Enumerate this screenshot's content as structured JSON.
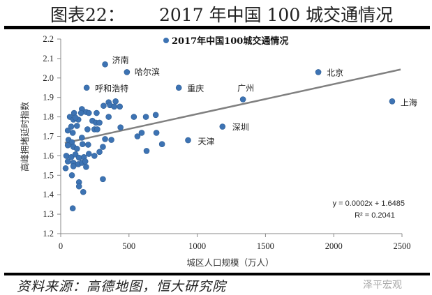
{
  "figure": {
    "number_label": "图表22：",
    "title": "2017 年中国 100 城交通情况",
    "source": "资料来源：高德地图，恒大研究院",
    "watermark": "泽平宏观"
  },
  "chart_data": {
    "type": "scatter",
    "legend": "2017年中国100城交通情况",
    "legend_position": "top",
    "xlabel": "城区人口规模（万人）",
    "ylabel": "高峰拥堵延时指数",
    "xlim": [
      0,
      2500
    ],
    "ylim": [
      1.2,
      2.2
    ],
    "xticks": [
      "0",
      "500",
      "1000",
      "1500",
      "2000",
      "2500"
    ],
    "yticks": [
      "1.2",
      "1.3",
      "1.4",
      "1.5",
      "1.6",
      "1.7",
      "1.8",
      "1.9",
      "2.0",
      "2.1",
      "2.2"
    ],
    "grid": false,
    "marker_color": "#3d73b3",
    "trendline_color": "#808080",
    "trendline": {
      "equation": "y = 0.0002x + 1.6485",
      "r2": "R² = 0.2041"
    },
    "labeled_points": [
      {
        "name": "济南",
        "x": 325,
        "y": 2.07
      },
      {
        "name": "哈尔滨",
        "x": 485,
        "y": 2.03
      },
      {
        "name": "呼和浩特",
        "x": 190,
        "y": 1.95
      },
      {
        "name": "重庆",
        "x": 865,
        "y": 1.95
      },
      {
        "name": "广州",
        "x": 1335,
        "y": 1.89
      },
      {
        "name": "北京",
        "x": 1887,
        "y": 2.03
      },
      {
        "name": "上海",
        "x": 2428,
        "y": 1.88
      },
      {
        "name": "深圳",
        "x": 1185,
        "y": 1.75
      },
      {
        "name": "天津",
        "x": 933,
        "y": 1.68
      }
    ],
    "points": [
      [
        402,
        1.88
      ],
      [
        351,
        1.875
      ],
      [
        314,
        1.857
      ],
      [
        361,
        1.86
      ],
      [
        392,
        1.853
      ],
      [
        433,
        1.853
      ],
      [
        155,
        1.84
      ],
      [
        186,
        1.825
      ],
      [
        206,
        1.82
      ],
      [
        98,
        1.82
      ],
      [
        263,
        1.82
      ],
      [
        149,
        1.82
      ],
      [
        67,
        1.8
      ],
      [
        351,
        1.8
      ],
      [
        536,
        1.8
      ],
      [
        624,
        1.8
      ],
      [
        696,
        1.81
      ],
      [
        93,
        1.786
      ],
      [
        129,
        1.786
      ],
      [
        108,
        1.796
      ],
      [
        232,
        1.78
      ],
      [
        258,
        1.77
      ],
      [
        284,
        1.77
      ],
      [
        247,
        1.736
      ],
      [
        268,
        1.736
      ],
      [
        77,
        1.75
      ],
      [
        119,
        1.754
      ],
      [
        196,
        1.736
      ],
      [
        438,
        1.746
      ],
      [
        52,
        1.73
      ],
      [
        88,
        1.718
      ],
      [
        155,
        1.693
      ],
      [
        57,
        1.682
      ],
      [
        325,
        1.686
      ],
      [
        371,
        1.682
      ],
      [
        562,
        1.7
      ],
      [
        593,
        1.718
      ],
      [
        701,
        1.718
      ],
      [
        742,
        1.66
      ],
      [
        629,
        1.625
      ],
      [
        82,
        1.67
      ],
      [
        52,
        1.654
      ],
      [
        93,
        1.646
      ],
      [
        119,
        1.636
      ],
      [
        160,
        1.66
      ],
      [
        201,
        1.657
      ],
      [
        309,
        1.646
      ],
      [
        284,
        1.62
      ],
      [
        247,
        1.6
      ],
      [
        206,
        1.61
      ],
      [
        41,
        1.6
      ],
      [
        77,
        1.593
      ],
      [
        108,
        1.607
      ],
      [
        134,
        1.59
      ],
      [
        170,
        1.593
      ],
      [
        52,
        1.571
      ],
      [
        93,
        1.564
      ],
      [
        129,
        1.557
      ],
      [
        155,
        1.564
      ],
      [
        180,
        1.571
      ],
      [
        93,
        1.546
      ],
      [
        186,
        1.543
      ],
      [
        36,
        1.536
      ],
      [
        82,
        1.5
      ],
      [
        309,
        1.48
      ],
      [
        134,
        1.464
      ],
      [
        134,
        1.443
      ],
      [
        165,
        1.414
      ],
      [
        88,
        1.33
      ]
    ]
  }
}
